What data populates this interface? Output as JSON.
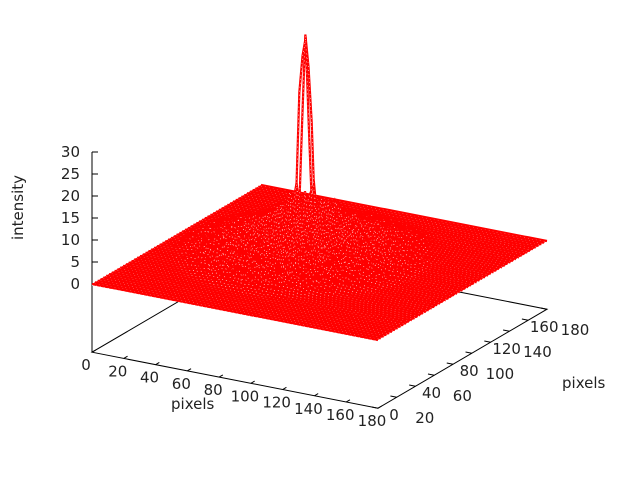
{
  "chart_data": {
    "type": "surface",
    "title": "",
    "xlabel": "pixels",
    "ylabel": "pixels",
    "zlabel": "intensity",
    "xlim": [
      0,
      180
    ],
    "ylim": [
      0,
      180
    ],
    "zlim": [
      0,
      30
    ],
    "xticks": [
      "0",
      "20",
      "40",
      "60",
      "80",
      "100",
      "120",
      "140",
      "160",
      "180"
    ],
    "yticks": [
      "0",
      "20",
      "40",
      "60",
      "80",
      "100",
      "120",
      "140",
      "160",
      "180"
    ],
    "zticks": [
      "0",
      "5",
      "10",
      "15",
      "20",
      "25",
      "30"
    ],
    "surface_color": "#ff0000",
    "description_values": {
      "baseline": 0,
      "peak_intensity": 35
    },
    "grid": false
  }
}
